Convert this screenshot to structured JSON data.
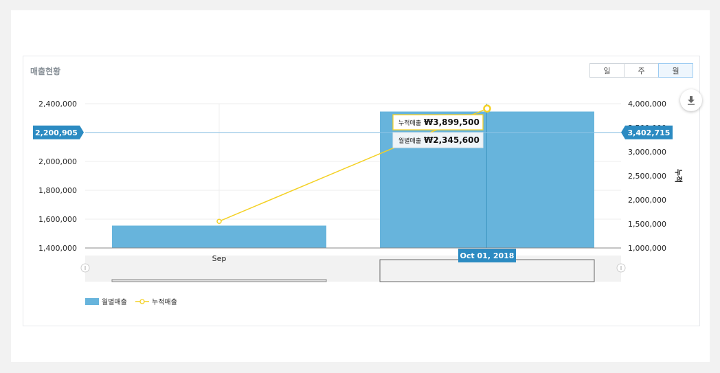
{
  "panel": {
    "title": "매출현황",
    "period_buttons": [
      {
        "label": "일",
        "active": false
      },
      {
        "label": "주",
        "active": false
      },
      {
        "label": "월",
        "active": true
      }
    ],
    "download_icon": "download-icon"
  },
  "chart_data": {
    "type": "bar",
    "categories": [
      "Sep",
      "Oct"
    ],
    "series": [
      {
        "name": "월별매출",
        "type": "bar",
        "axis": "left",
        "color": "#67b4dc",
        "values": [
          1555000,
          2345600
        ]
      },
      {
        "name": "누적매출",
        "type": "line",
        "axis": "right",
        "color": "#f4d125",
        "values": [
          1553900,
          3899500
        ]
      }
    ],
    "y_left": {
      "ticks": [
        "1,400,000",
        "1,600,000",
        "1,800,000",
        "2,000,000",
        "2,200,000",
        "2,400,000"
      ],
      "ylim": [
        1400000,
        2400000
      ]
    },
    "y_right": {
      "label": "누적",
      "ticks": [
        "1,000,000",
        "1,500,000",
        "2,000,000",
        "2,500,000",
        "3,000,000",
        "3,500,000",
        "4,000,000"
      ],
      "ylim": [
        1000000,
        4000000
      ]
    },
    "x_tick_labels": [
      "Sep"
    ],
    "crosshair": {
      "left_value": 2200905,
      "left_label": "2,200,905",
      "right_value": 3402715,
      "right_label": "3,402,715",
      "x_label": "Oct 01, 2018"
    },
    "tooltip": {
      "cumulative_label": "누적매출",
      "cumulative_value": "₩3,899,500",
      "monthly_label": "월별매출",
      "monthly_value": "₩2,345,600"
    },
    "legend": [
      {
        "name": "월별매출",
        "marker": "bar",
        "color": "#67b4dc"
      },
      {
        "name": "누적매출",
        "marker": "line",
        "color": "#f4d125"
      }
    ],
    "grid": true
  }
}
